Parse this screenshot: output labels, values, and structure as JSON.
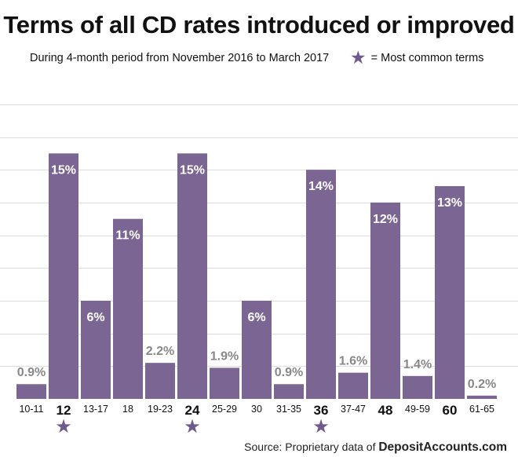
{
  "colors": {
    "bar": "#7a6593",
    "star": "#6f5a8e",
    "grid": "#dddddd",
    "label_light": "#888888"
  },
  "chart_data": {
    "type": "bar",
    "title": "Terms of all CD rates introduced or improved",
    "subtitle": "During 4-month period from November 2016 to March 2017",
    "legend": {
      "symbol": "★",
      "text": "= Most common terms"
    },
    "categories": [
      "10-11",
      "12",
      "13-17",
      "18",
      "19-23",
      "24",
      "25-29",
      "30",
      "31-35",
      "36",
      "37-47",
      "48",
      "49-59",
      "60",
      "61-65"
    ],
    "values": [
      0.9,
      15,
      6,
      11,
      2.2,
      15,
      1.9,
      6,
      0.9,
      14,
      1.6,
      12,
      1.4,
      13,
      0.2
    ],
    "value_labels": [
      "0.9%",
      "15%",
      "6%",
      "11%",
      "2.2%",
      "15%",
      "1.9%",
      "6%",
      "0.9%",
      "14%",
      "1.6%",
      "12%",
      "1.4%",
      "13%",
      "0.2%"
    ],
    "bold_categories": [
      "12",
      "24",
      "36",
      "48",
      "60"
    ],
    "starred_categories": [
      "12",
      "24",
      "36"
    ],
    "ylim": [
      0,
      19
    ],
    "grid": true,
    "xlabel": "",
    "ylabel": ""
  },
  "source": {
    "prefix": "Source: Proprietary data of ",
    "brand": "DepositAccounts.com"
  }
}
